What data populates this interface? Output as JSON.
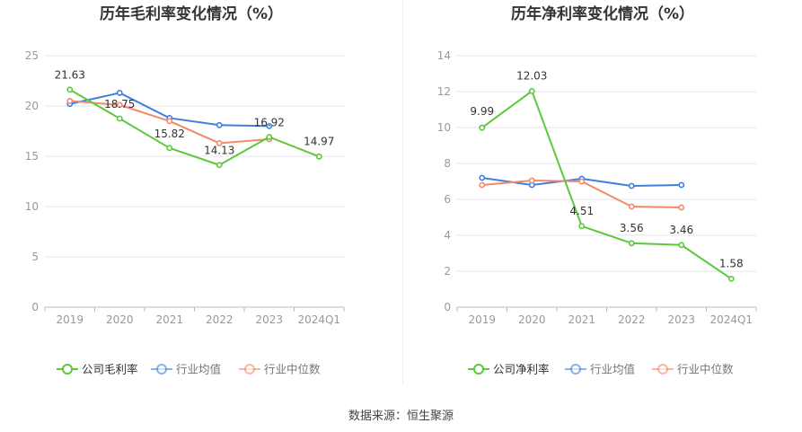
{
  "colors": {
    "company": "#5cc83a",
    "industry_avg": "#3f7fe0",
    "industry_median": "#f4886a",
    "grid": "#e6e6ee",
    "axis": "#bbbbbb",
    "text": "#999999",
    "title": "#333333"
  },
  "source_text": "数据来源：恒生聚源",
  "chart_data": [
    {
      "type": "line",
      "title": "历年毛利率变化情况（%）",
      "categories": [
        "2019",
        "2020",
        "2021",
        "2022",
        "2023",
        "2024Q1"
      ],
      "ylim": [
        0,
        25
      ],
      "yticks": [
        "0",
        "5",
        "10",
        "15",
        "20",
        "25"
      ],
      "grid": true,
      "legend_position": "bottom",
      "series": [
        {
          "name": "公司毛利率",
          "key": "company",
          "values": [
            21.63,
            18.75,
            15.82,
            14.13,
            16.92,
            14.97
          ],
          "labels": [
            "21.63",
            "18.75",
            "15.82",
            "14.13",
            "16.92",
            "14.97"
          ]
        },
        {
          "name": "行业均值",
          "key": "industry_avg",
          "values": [
            20.2,
            21.3,
            18.8,
            18.1,
            18.0,
            null
          ]
        },
        {
          "name": "行业中位数",
          "key": "industry_median",
          "values": [
            20.5,
            20.1,
            18.5,
            16.3,
            16.7,
            null
          ]
        }
      ]
    },
    {
      "type": "line",
      "title": "历年净利率变化情况（%）",
      "categories": [
        "2019",
        "2020",
        "2021",
        "2022",
        "2023",
        "2024Q1"
      ],
      "ylim": [
        0,
        14
      ],
      "yticks": [
        "0",
        "2",
        "4",
        "6",
        "8",
        "10",
        "12",
        "14"
      ],
      "grid": true,
      "legend_position": "bottom",
      "series": [
        {
          "name": "公司净利率",
          "key": "company",
          "values": [
            9.99,
            12.03,
            4.51,
            3.56,
            3.46,
            1.58
          ],
          "labels": [
            "9.99",
            "12.03",
            "4.51",
            "3.56",
            "3.46",
            "1.58"
          ]
        },
        {
          "name": "行业均值",
          "key": "industry_avg",
          "values": [
            7.2,
            6.8,
            7.15,
            6.75,
            6.8,
            null
          ]
        },
        {
          "name": "行业中位数",
          "key": "industry_median",
          "values": [
            6.8,
            7.05,
            7.0,
            5.6,
            5.55,
            null
          ]
        }
      ]
    }
  ]
}
